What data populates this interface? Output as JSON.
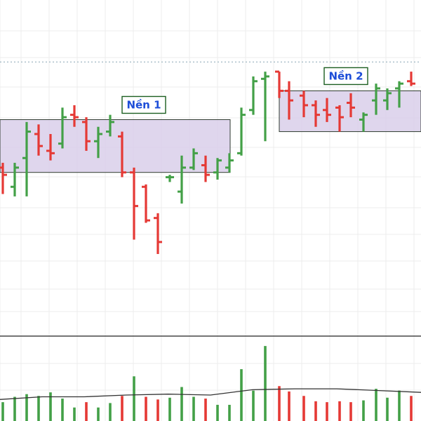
{
  "colors": {
    "up": "#43a047",
    "down": "#e53935",
    "zone_fill": "#d9cfea",
    "zone_stroke": "#2f3b2f",
    "label_text": "#1d4ed8",
    "label_border": "#1b5e20",
    "volume_ma": "#333333",
    "dotted_level": "#9fb7c2",
    "divider": "#222222"
  },
  "chart_data": {
    "type": "ohlc-bar",
    "grid": true,
    "xlabel": "",
    "ylabel": "",
    "ylim": [
      0,
      100
    ],
    "bars": [
      {
        "x": 4,
        "o": 36,
        "h": 38,
        "l": 25,
        "c": 33
      },
      {
        "x": 21,
        "o": 28,
        "h": 38,
        "l": 24,
        "c": 36
      },
      {
        "x": 38,
        "o": 40,
        "h": 55,
        "l": 24,
        "c": 51
      },
      {
        "x": 55,
        "o": 50,
        "h": 54,
        "l": 41,
        "c": 45
      },
      {
        "x": 72,
        "o": 43,
        "h": 50,
        "l": 39,
        "c": 42
      },
      {
        "x": 89,
        "o": 46,
        "h": 61,
        "l": 44,
        "c": 57
      },
      {
        "x": 106,
        "o": 58,
        "h": 62,
        "l": 53,
        "c": 57
      },
      {
        "x": 123,
        "o": 55,
        "h": 57,
        "l": 43,
        "c": 47
      },
      {
        "x": 140,
        "o": 47,
        "h": 53,
        "l": 40,
        "c": 50
      },
      {
        "x": 157,
        "o": 51,
        "h": 58,
        "l": 49,
        "c": 55
      },
      {
        "x": 174,
        "o": 49,
        "h": 51,
        "l": 32,
        "c": 34
      },
      {
        "x": 191,
        "o": 34,
        "h": 36,
        "l": 6,
        "c": 20
      },
      {
        "x": 208,
        "o": 28,
        "h": 29,
        "l": 13,
        "c": 14
      },
      {
        "x": 225,
        "o": 15,
        "h": 17,
        "l": 0,
        "c": 5
      },
      {
        "x": 242,
        "o": 32,
        "h": 33,
        "l": 30,
        "c": 32
      },
      {
        "x": 259,
        "o": 26,
        "h": 41,
        "l": 21,
        "c": 36
      },
      {
        "x": 276,
        "o": 36,
        "h": 44,
        "l": 35,
        "c": 42
      },
      {
        "x": 293,
        "o": 37,
        "h": 41,
        "l": 30,
        "c": 33
      },
      {
        "x": 310,
        "o": 34,
        "h": 40,
        "l": 31,
        "c": 39
      },
      {
        "x": 327,
        "o": 36,
        "h": 42,
        "l": 34,
        "c": 39
      },
      {
        "x": 344,
        "o": 42,
        "h": 61,
        "l": 41,
        "c": 58
      },
      {
        "x": 361,
        "o": 60,
        "h": 74,
        "l": 58,
        "c": 72
      },
      {
        "x": 378,
        "o": 73,
        "h": 76,
        "l": 47,
        "c": 74
      },
      {
        "x": 398,
        "o": 76,
        "h": 76,
        "l": 65,
        "c": 68
      },
      {
        "x": 412,
        "o": 68,
        "h": 72,
        "l": 56,
        "c": 64
      },
      {
        "x": 433,
        "o": 66,
        "h": 68,
        "l": 57,
        "c": 62
      },
      {
        "x": 450,
        "o": 62,
        "h": 64,
        "l": 53,
        "c": 58
      },
      {
        "x": 466,
        "o": 60,
        "h": 65,
        "l": 55,
        "c": 58
      },
      {
        "x": 484,
        "o": 61,
        "h": 62,
        "l": 51,
        "c": 57
      },
      {
        "x": 500,
        "o": 63,
        "h": 67,
        "l": 57,
        "c": 61
      },
      {
        "x": 518,
        "o": 56,
        "h": 59,
        "l": 51,
        "c": 58
      },
      {
        "x": 536,
        "o": 64,
        "h": 71,
        "l": 58,
        "c": 69
      },
      {
        "x": 552,
        "o": 64,
        "h": 69,
        "l": 60,
        "c": 67
      },
      {
        "x": 569,
        "o": 69,
        "h": 72,
        "l": 61,
        "c": 71
      },
      {
        "x": 586,
        "o": 72,
        "h": 76,
        "l": 70,
        "c": 71
      }
    ],
    "volume": [
      {
        "x": 4,
        "v": 18,
        "dir": "up"
      },
      {
        "x": 21,
        "v": 24,
        "dir": "up"
      },
      {
        "x": 38,
        "v": 27,
        "dir": "up"
      },
      {
        "x": 55,
        "v": 25,
        "dir": "up"
      },
      {
        "x": 72,
        "v": 29,
        "dir": "up"
      },
      {
        "x": 89,
        "v": 22,
        "dir": "up"
      },
      {
        "x": 106,
        "v": 12,
        "dir": "up"
      },
      {
        "x": 123,
        "v": 18,
        "dir": "down"
      },
      {
        "x": 140,
        "v": 12,
        "dir": "up"
      },
      {
        "x": 157,
        "v": 17,
        "dir": "up"
      },
      {
        "x": 174,
        "v": 25,
        "dir": "down"
      },
      {
        "x": 191,
        "v": 47,
        "dir": "up"
      },
      {
        "x": 208,
        "v": 24,
        "dir": "down"
      },
      {
        "x": 225,
        "v": 21,
        "dir": "down"
      },
      {
        "x": 242,
        "v": 23,
        "dir": "up"
      },
      {
        "x": 259,
        "v": 35,
        "dir": "up"
      },
      {
        "x": 276,
        "v": 24,
        "dir": "up"
      },
      {
        "x": 293,
        "v": 22,
        "dir": "down"
      },
      {
        "x": 310,
        "v": 15,
        "dir": "up"
      },
      {
        "x": 327,
        "v": 15,
        "dir": "up"
      },
      {
        "x": 344,
        "v": 55,
        "dir": "up"
      },
      {
        "x": 361,
        "v": 31,
        "dir": "up"
      },
      {
        "x": 378,
        "v": 81,
        "dir": "up"
      },
      {
        "x": 398,
        "v": 36,
        "dir": "down"
      },
      {
        "x": 412,
        "v": 30,
        "dir": "down"
      },
      {
        "x": 433,
        "v": 25,
        "dir": "down"
      },
      {
        "x": 450,
        "v": 19,
        "dir": "down"
      },
      {
        "x": 466,
        "v": 18,
        "dir": "down"
      },
      {
        "x": 484,
        "v": 19,
        "dir": "down"
      },
      {
        "x": 500,
        "v": 18,
        "dir": "down"
      },
      {
        "x": 518,
        "v": 20,
        "dir": "up"
      },
      {
        "x": 536,
        "v": 33,
        "dir": "up"
      },
      {
        "x": 552,
        "v": 23,
        "dir": "up"
      },
      {
        "x": 569,
        "v": 31,
        "dir": "up"
      },
      {
        "x": 586,
        "v": 25,
        "dir": "down"
      }
    ],
    "volume_ma": [
      {
        "x": 0,
        "v": 21
      },
      {
        "x": 60,
        "v": 24
      },
      {
        "x": 120,
        "v": 24
      },
      {
        "x": 180,
        "v": 26
      },
      {
        "x": 240,
        "v": 27
      },
      {
        "x": 300,
        "v": 26
      },
      {
        "x": 360,
        "v": 32
      },
      {
        "x": 420,
        "v": 33
      },
      {
        "x": 480,
        "v": 33
      },
      {
        "x": 540,
        "v": 31
      },
      {
        "x": 600,
        "v": 29
      }
    ],
    "zones": [
      {
        "label": "Nền 1",
        "x_start": 0,
        "x_end": 328,
        "top": 56,
        "bottom": 34
      },
      {
        "label": "Nền 2",
        "x_start": 398,
        "x_end": 600,
        "top": 68,
        "bottom": 51
      }
    ],
    "reference_level": 80
  }
}
